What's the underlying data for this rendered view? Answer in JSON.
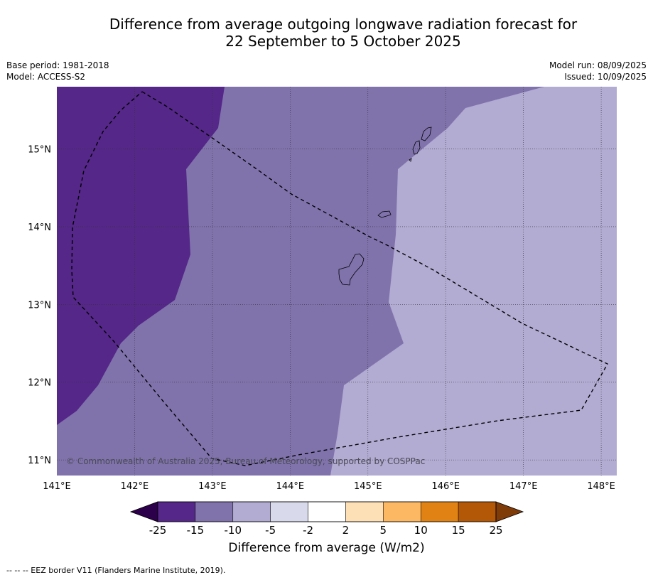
{
  "title": {
    "line1": "Difference from average outgoing longwave radiation forecast for",
    "line2": "22 September to 5 October 2025"
  },
  "meta": {
    "base_period": "Base period: 1981-2018",
    "model": "Model: ACCESS-S2",
    "model_run": "Model run: 08/09/2025",
    "issued": "Issued: 10/09/2025"
  },
  "map": {
    "lon_range": [
      141.0,
      148.2
    ],
    "lat_range": [
      10.8,
      15.8
    ],
    "lon_ticks": [
      {
        "v": 141,
        "label": "141°E"
      },
      {
        "v": 142,
        "label": "142°E"
      },
      {
        "v": 143,
        "label": "143°E"
      },
      {
        "v": 144,
        "label": "144°E"
      },
      {
        "v": 145,
        "label": "145°E"
      },
      {
        "v": 146,
        "label": "146°E"
      },
      {
        "v": 147,
        "label": "147°E"
      },
      {
        "v": 148,
        "label": "148°E"
      }
    ],
    "lat_ticks": [
      {
        "v": 11,
        "label": "11°N"
      },
      {
        "v": 12,
        "label": "12°N"
      },
      {
        "v": 13,
        "label": "13°N"
      },
      {
        "v": 14,
        "label": "14°N"
      },
      {
        "v": 15,
        "label": "15°N"
      }
    ],
    "copyright": "© Commonwealth of Australia 2025, Bureau of Meteorology, supported by COSPPac",
    "colors": {
      "band_-25_-15": "#542788",
      "band_-15_-10": "#8073ac",
      "band_-10_-5": "#b2abd2",
      "band_-5_-2": "#d8daeb",
      "band_-2_2": "#ffffff",
      "band_2_5": "#fee0b6",
      "band_5_10": "#fdb863",
      "band_10_15": "#e08214",
      "band_15_25": "#b35806",
      "under": "#2d004b",
      "over": "#7f3b08"
    }
  },
  "colorbar": {
    "ticks": [
      "-25",
      "-15",
      "-10",
      "-5",
      "-2",
      "2",
      "5",
      "10",
      "15",
      "25"
    ],
    "label": "Difference from average (W/m2)"
  },
  "legend": {
    "eez_text": "--  --  -- EEZ border V11 (Flanders Marine Institute, 2019)."
  }
}
